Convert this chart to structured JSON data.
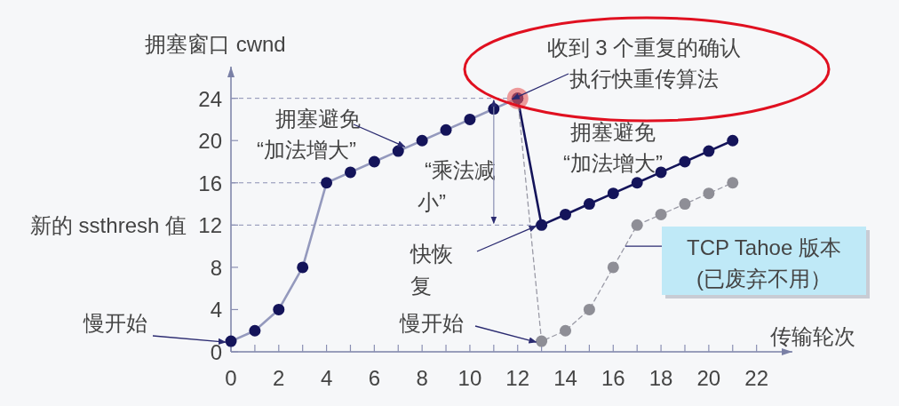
{
  "chart_data": {
    "type": "line",
    "xlabel": "传输轮次",
    "ylabel": "拥塞窗口 cwnd",
    "xlim": [
      0,
      23.5
    ],
    "ylim": [
      0,
      27
    ],
    "xticks": [
      0,
      {
        "value": 1,
        "label": null
      },
      2,
      {
        "value": 3,
        "label": null
      },
      4,
      {
        "value": 5,
        "label": null
      },
      6,
      {
        "value": 7,
        "label": null
      },
      8,
      {
        "value": 9,
        "label": null
      },
      10,
      {
        "value": 11,
        "label": null
      },
      12,
      {
        "value": 13,
        "label": null
      },
      14,
      {
        "value": 15,
        "label": null
      },
      16,
      {
        "value": 17,
        "label": null
      },
      18,
      {
        "value": 19,
        "label": null
      },
      20,
      {
        "value": 21,
        "label": null
      },
      22
    ],
    "yticks": [
      0,
      4,
      8,
      12,
      16,
      20,
      24
    ],
    "grid": false,
    "marker": "circle",
    "series": [
      {
        "color": "#9499bd",
        "colors": [
          "#14145a",
          "#14145a",
          "#14145a",
          "#14145a",
          "#14145a",
          "#14145a",
          "#14145a",
          "#14145a",
          "#14145a",
          "#14145a",
          "#14145a",
          "#14145a",
          "#14145a"
        ],
        "line_style": "solid",
        "x": [
          0,
          1,
          2,
          3,
          4,
          5,
          6,
          7,
          8,
          9,
          10,
          11,
          12
        ],
        "values": [
          1,
          2,
          4,
          8,
          16,
          17,
          18,
          19,
          20,
          21,
          22,
          23,
          24
        ]
      },
      {
        "color": "#14145a",
        "line_style": "solid",
        "x": [
          12,
          13,
          14,
          15,
          16,
          17,
          18,
          19,
          20,
          21
        ],
        "values": [
          24,
          12,
          13,
          14,
          15,
          16,
          17,
          18,
          19,
          20
        ]
      },
      {
        "color": "#9a9aa6",
        "colors": [
          "#8e8e96",
          "#8e8e96",
          "#8e8e96",
          "#8e8e96",
          "#8e8e96",
          "#8e8e96",
          "#8e8e96",
          "#8e8e96",
          "#8e8e96",
          "#8e8e96"
        ],
        "line_style": "dashed",
        "x": [
          12,
          13,
          14,
          15,
          16,
          17,
          18,
          19,
          20,
          21
        ],
        "values": [
          24,
          1,
          2,
          4,
          8,
          12,
          13,
          14,
          15,
          16
        ]
      }
    ],
    "ref_lines": [
      {
        "axis": "y",
        "value": 24,
        "label": null,
        "color": "#8a8fb3",
        "line_style": "dashed"
      },
      {
        "axis": "y",
        "value": 16,
        "label": null,
        "color": "#8a8fb3",
        "line_style": "dashed"
      },
      {
        "axis": "y",
        "value": 12,
        "label": "新的 ssthresh 值",
        "color": "#8a8fb3",
        "line_style": "dashed"
      }
    ],
    "annotations": [
      {
        "text": "慢开始",
        "x": 0,
        "y": 1
      },
      {
        "text": "拥塞避免\n“加法增大”",
        "x": 7.5,
        "y": 19.5
      },
      "“乘法减小”",
      {
        "text": "快恢复",
        "x": 13,
        "y": 12
      },
      {
        "text": "慢开始",
        "x": 13,
        "y": 1
      },
      {
        "text": "收到 3 个重复的确认执行快重传算法",
        "x": 12,
        "y": 24
      },
      "拥塞避免\n“加法增大”",
      {
        "text": "TCP Tahoe 版本\n(已废弃不用）",
        "x": 16.5,
        "y": 10
      }
    ]
  }
}
